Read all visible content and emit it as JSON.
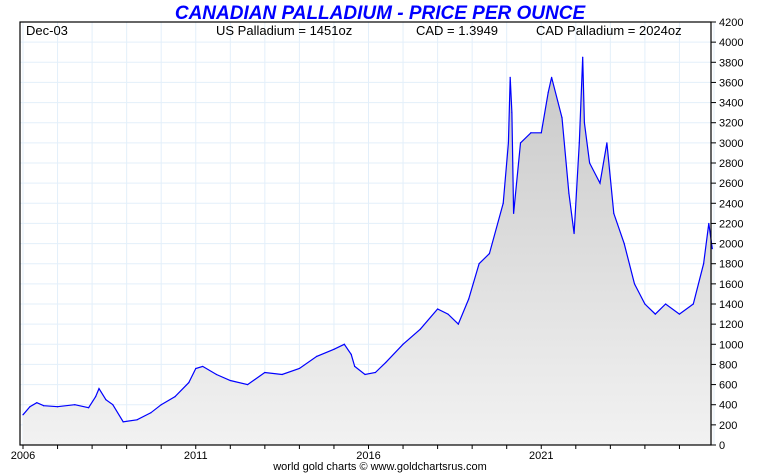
{
  "chart_data": {
    "type": "area",
    "title": "CANADIAN PALLADIUM - PRICE PER OUNCE",
    "info": {
      "date": "Dec-03",
      "us_price": "US Palladium = 1451oz",
      "fx": "CAD = 1.3949",
      "cad_price": "CAD Palladium = 2024oz"
    },
    "footer": "world gold charts © www.goldchartsrus.com",
    "xlim": [
      2006,
      2026
    ],
    "ylim": [
      0,
      4200
    ],
    "xticks": [
      2006,
      2011,
      2016,
      2021
    ],
    "yticks": [
      0,
      200,
      400,
      600,
      800,
      1000,
      1200,
      1400,
      1600,
      1800,
      2000,
      2200,
      2400,
      2600,
      2800,
      3000,
      3200,
      3400,
      3600,
      3800,
      4000,
      4200
    ],
    "grid": true,
    "line_color": "#0000ff",
    "fill_color": "#d8d8d8",
    "series": [
      {
        "name": "CAD Palladium",
        "x": [
          2006.0,
          2006.2,
          2006.4,
          2006.6,
          2007.0,
          2007.5,
          2007.9,
          2008.1,
          2008.2,
          2008.4,
          2008.6,
          2008.9,
          2009.3,
          2009.7,
          2010.0,
          2010.4,
          2010.8,
          2011.0,
          2011.2,
          2011.6,
          2012.0,
          2012.5,
          2013.0,
          2013.5,
          2014.0,
          2014.5,
          2015.0,
          2015.3,
          2015.5,
          2015.6,
          2015.9,
          2016.2,
          2016.5,
          2017.0,
          2017.5,
          2018.0,
          2018.3,
          2018.6,
          2018.9,
          2019.2,
          2019.5,
          2019.9,
          2020.05,
          2020.1,
          2020.15,
          2020.2,
          2020.4,
          2020.7,
          2021.0,
          2021.2,
          2021.3,
          2021.6,
          2021.8,
          2021.95,
          2022.1,
          2022.2,
          2022.25,
          2022.4,
          2022.7,
          2022.9,
          2023.1,
          2023.4,
          2023.7,
          2024.0,
          2024.3,
          2024.6,
          2025.0,
          2025.4,
          2025.7,
          2025.85,
          2025.95
        ],
        "values": [
          300,
          380,
          420,
          390,
          380,
          400,
          370,
          480,
          560,
          450,
          400,
          230,
          250,
          320,
          400,
          480,
          620,
          760,
          780,
          700,
          640,
          600,
          720,
          700,
          760,
          880,
          950,
          1000,
          900,
          780,
          700,
          720,
          820,
          1000,
          1150,
          1350,
          1300,
          1200,
          1450,
          1800,
          1900,
          2400,
          3000,
          3650,
          3300,
          2300,
          3000,
          3100,
          3100,
          3500,
          3650,
          3250,
          2500,
          2100,
          3000,
          3850,
          3200,
          2800,
          2600,
          3000,
          2300,
          2000,
          1600,
          1400,
          1300,
          1400,
          1300,
          1400,
          1800,
          2200,
          1950
        ]
      }
    ]
  }
}
